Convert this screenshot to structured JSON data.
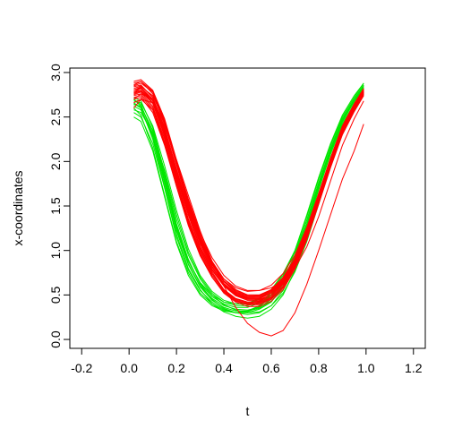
{
  "chart_data": {
    "type": "line",
    "title": "",
    "xlabel": "t",
    "ylabel": "x-coordinates",
    "xlim": [
      -0.25,
      1.25
    ],
    "ylim": [
      -0.1,
      3.05
    ],
    "xticks": [
      -0.2,
      0.0,
      0.2,
      0.4,
      0.6,
      0.8,
      1.0,
      1.2
    ],
    "xtick_labels": [
      "-0.2",
      "0.0",
      "0.2",
      "0.4",
      "0.6",
      "0.8",
      "1.0",
      "1.2"
    ],
    "yticks": [
      0.0,
      0.5,
      1.0,
      1.5,
      2.0,
      2.5,
      3.0
    ],
    "ytick_labels": [
      "0.0",
      "0.5",
      "1.0",
      "1.5",
      "2.0",
      "2.5",
      "3.0"
    ],
    "grid": false,
    "legend": "none",
    "group_colors": [
      "#00e600",
      "#ff0000"
    ],
    "x": [
      0.02,
      0.05,
      0.1,
      0.15,
      0.2,
      0.25,
      0.3,
      0.35,
      0.4,
      0.45,
      0.5,
      0.55,
      0.6,
      0.65,
      0.7,
      0.75,
      0.8,
      0.85,
      0.9,
      0.95,
      0.99
    ],
    "series": [
      {
        "color": "#00e600",
        "values": [
          2.7,
          2.62,
          2.35,
          1.85,
          1.3,
          0.9,
          0.62,
          0.45,
          0.35,
          0.3,
          0.28,
          0.3,
          0.38,
          0.55,
          0.82,
          1.2,
          1.62,
          2.02,
          2.38,
          2.62,
          2.8
        ]
      },
      {
        "color": "#00e600",
        "values": [
          2.55,
          2.5,
          2.2,
          1.7,
          1.15,
          0.78,
          0.55,
          0.42,
          0.34,
          0.3,
          0.3,
          0.34,
          0.42,
          0.6,
          0.88,
          1.25,
          1.68,
          2.08,
          2.42,
          2.65,
          2.82
        ]
      },
      {
        "color": "#00e600",
        "values": [
          2.62,
          2.58,
          2.28,
          1.78,
          1.24,
          0.85,
          0.6,
          0.46,
          0.38,
          0.34,
          0.33,
          0.36,
          0.45,
          0.62,
          0.9,
          1.28,
          1.7,
          2.1,
          2.44,
          2.68,
          2.85
        ]
      },
      {
        "color": "#00e600",
        "values": [
          2.58,
          2.55,
          2.32,
          1.9,
          1.4,
          0.98,
          0.7,
          0.52,
          0.42,
          0.38,
          0.38,
          0.42,
          0.52,
          0.68,
          0.94,
          1.3,
          1.72,
          2.12,
          2.46,
          2.7,
          2.86
        ]
      },
      {
        "color": "#00e600",
        "values": [
          2.65,
          2.6,
          2.25,
          1.72,
          1.18,
          0.8,
          0.56,
          0.4,
          0.31,
          0.26,
          0.24,
          0.26,
          0.34,
          0.5,
          0.78,
          1.15,
          1.58,
          2.0,
          2.36,
          2.6,
          2.78
        ]
      },
      {
        "color": "#00e600",
        "values": [
          2.68,
          2.66,
          2.4,
          1.95,
          1.45,
          1.02,
          0.72,
          0.54,
          0.44,
          0.4,
          0.4,
          0.45,
          0.56,
          0.74,
          1.0,
          1.38,
          1.8,
          2.18,
          2.5,
          2.72,
          2.88
        ]
      },
      {
        "color": "#00e600",
        "values": [
          2.6,
          2.52,
          2.15,
          1.62,
          1.1,
          0.75,
          0.52,
          0.4,
          0.33,
          0.3,
          0.31,
          0.37,
          0.48,
          0.66,
          0.95,
          1.34,
          1.76,
          2.14,
          2.47,
          2.68,
          2.84
        ]
      },
      {
        "color": "#00e600",
        "values": [
          2.72,
          2.68,
          2.38,
          1.88,
          1.35,
          0.95,
          0.68,
          0.5,
          0.39,
          0.33,
          0.3,
          0.31,
          0.38,
          0.52,
          0.76,
          1.1,
          1.52,
          1.95,
          2.32,
          2.58,
          2.76
        ]
      },
      {
        "color": "#00e600",
        "values": [
          2.5,
          2.45,
          2.12,
          1.6,
          1.08,
          0.72,
          0.5,
          0.38,
          0.32,
          0.3,
          0.32,
          0.38,
          0.5,
          0.7,
          1.0,
          1.4,
          1.82,
          2.2,
          2.52,
          2.74,
          2.88
        ]
      },
      {
        "color": "#00e600",
        "values": [
          2.64,
          2.62,
          2.34,
          1.82,
          1.28,
          0.88,
          0.63,
          0.48,
          0.4,
          0.36,
          0.36,
          0.41,
          0.5,
          0.66,
          0.92,
          1.3,
          1.74,
          2.12,
          2.45,
          2.67,
          2.83
        ]
      },
      {
        "color": "#00e600",
        "values": [
          2.66,
          2.6,
          2.28,
          1.76,
          1.22,
          0.84,
          0.59,
          0.44,
          0.36,
          0.32,
          0.32,
          0.35,
          0.43,
          0.58,
          0.84,
          1.2,
          1.62,
          2.04,
          2.4,
          2.64,
          2.82
        ]
      },
      {
        "color": "#00e600",
        "values": [
          2.7,
          2.64,
          2.3,
          1.8,
          1.26,
          0.88,
          0.64,
          0.5,
          0.42,
          0.4,
          0.41,
          0.46,
          0.56,
          0.72,
          0.98,
          1.34,
          1.76,
          2.15,
          2.48,
          2.7,
          2.86
        ]
      },
      {
        "color": "#ff0000",
        "values": [
          2.8,
          2.82,
          2.68,
          2.32,
          1.85,
          1.4,
          1.02,
          0.74,
          0.56,
          0.46,
          0.42,
          0.43,
          0.5,
          0.64,
          0.88,
          1.22,
          1.62,
          2.02,
          2.38,
          2.62,
          2.78
        ]
      },
      {
        "color": "#ff0000",
        "values": [
          2.85,
          2.88,
          2.78,
          2.45,
          1.98,
          1.52,
          1.12,
          0.82,
          0.62,
          0.5,
          0.45,
          0.45,
          0.5,
          0.62,
          0.84,
          1.16,
          1.56,
          1.96,
          2.34,
          2.6,
          2.76
        ]
      },
      {
        "color": "#ff0000",
        "values": [
          2.75,
          2.78,
          2.62,
          2.25,
          1.78,
          1.34,
          0.98,
          0.72,
          0.55,
          0.45,
          0.41,
          0.42,
          0.48,
          0.62,
          0.86,
          1.2,
          1.6,
          2.0,
          2.36,
          2.61,
          2.77
        ]
      },
      {
        "color": "#ff0000",
        "values": [
          2.9,
          2.92,
          2.8,
          2.48,
          2.02,
          1.56,
          1.16,
          0.86,
          0.66,
          0.55,
          0.5,
          0.5,
          0.56,
          0.68,
          0.9,
          1.24,
          1.64,
          2.04,
          2.4,
          2.65,
          2.82
        ]
      },
      {
        "color": "#ff0000",
        "values": [
          2.7,
          2.72,
          2.55,
          2.18,
          1.72,
          1.28,
          0.94,
          0.7,
          0.54,
          0.44,
          0.4,
          0.41,
          0.47,
          0.6,
          0.83,
          1.16,
          1.56,
          1.96,
          2.32,
          2.58,
          2.75
        ]
      },
      {
        "color": "#ff0000",
        "values": [
          2.82,
          2.85,
          2.72,
          2.38,
          1.92,
          1.48,
          1.1,
          0.82,
          0.63,
          0.52,
          0.47,
          0.47,
          0.53,
          0.66,
          0.88,
          1.2,
          1.6,
          2.0,
          2.36,
          2.62,
          2.8
        ]
      },
      {
        "color": "#ff0000",
        "values": [
          2.78,
          2.8,
          2.66,
          2.3,
          1.84,
          1.4,
          1.04,
          0.78,
          0.6,
          0.49,
          0.44,
          0.44,
          0.5,
          0.63,
          0.86,
          1.18,
          1.58,
          1.98,
          2.34,
          2.6,
          2.77
        ]
      },
      {
        "color": "#ff0000",
        "values": [
          2.74,
          2.76,
          2.6,
          2.22,
          1.75,
          1.32,
          0.96,
          0.7,
          0.52,
          0.42,
          0.37,
          0.37,
          0.43,
          0.56,
          0.79,
          1.12,
          1.52,
          1.93,
          2.3,
          2.56,
          2.74
        ]
      },
      {
        "color": "#ff0000",
        "values": [
          2.86,
          2.9,
          2.76,
          2.42,
          1.96,
          1.5,
          1.12,
          0.84,
          0.65,
          0.53,
          0.48,
          0.48,
          0.54,
          0.67,
          0.9,
          1.22,
          1.62,
          2.02,
          2.38,
          2.64,
          2.82
        ]
      },
      {
        "color": "#ff0000",
        "values": [
          2.76,
          2.79,
          2.65,
          2.28,
          1.8,
          1.36,
          1.0,
          0.74,
          0.56,
          0.46,
          0.42,
          0.43,
          0.5,
          0.64,
          0.88,
          1.22,
          1.62,
          2.02,
          2.38,
          2.63,
          2.8
        ]
      },
      {
        "color": "#ff0000",
        "values": [
          2.8,
          2.84,
          2.74,
          2.44,
          2.0,
          1.56,
          1.18,
          0.88,
          0.68,
          0.56,
          0.5,
          0.5,
          0.55,
          0.67,
          0.88,
          1.18,
          1.56,
          1.96,
          2.34,
          2.6,
          2.78
        ]
      },
      {
        "color": "#ff0000",
        "values": [
          2.72,
          2.74,
          2.58,
          2.2,
          1.72,
          1.3,
          0.95,
          0.7,
          0.53,
          0.43,
          0.39,
          0.4,
          0.46,
          0.59,
          0.82,
          1.15,
          1.55,
          1.95,
          2.32,
          2.58,
          2.76
        ]
      },
      {
        "color": "#ff0000",
        "values": [
          2.88,
          2.9,
          2.79,
          2.46,
          2.0,
          1.54,
          1.14,
          0.85,
          0.65,
          0.54,
          0.49,
          0.49,
          0.55,
          0.68,
          0.9,
          1.23,
          1.63,
          2.03,
          2.39,
          2.64,
          2.81
        ]
      },
      {
        "color": "#ff0000",
        "values": [
          2.8,
          2.83,
          2.7,
          2.35,
          1.88,
          1.44,
          1.07,
          0.79,
          0.61,
          0.5,
          0.46,
          0.46,
          0.52,
          0.65,
          0.87,
          1.19,
          1.59,
          1.99,
          2.35,
          2.61,
          2.79
        ]
      },
      {
        "color": "#ff0000",
        "values": [
          2.77,
          2.8,
          2.68,
          2.34,
          1.9,
          1.48,
          1.12,
          0.86,
          0.68,
          0.58,
          0.54,
          0.55,
          0.61,
          0.74,
          0.95,
          1.26,
          1.64,
          2.02,
          2.37,
          2.62,
          2.8
        ]
      },
      {
        "color": "#ff0000",
        "values": [
          2.84,
          2.86,
          2.72,
          2.36,
          1.88,
          1.42,
          1.04,
          0.76,
          0.56,
          0.44,
          0.39,
          0.39,
          0.45,
          0.58,
          0.81,
          1.14,
          1.54,
          1.95,
          2.32,
          2.59,
          2.78
        ]
      },
      {
        "color": "#ff0000",
        "values": [
          2.66,
          2.7,
          2.58,
          2.26,
          1.82,
          1.4,
          1.04,
          0.78,
          0.6,
          0.5,
          0.47,
          0.49,
          0.56,
          0.7,
          0.92,
          1.24,
          1.62,
          2.0,
          2.35,
          2.6,
          2.77
        ]
      },
      {
        "color": "#ff0000",
        "values": [
          2.6,
          2.7,
          2.66,
          2.4,
          2.02,
          1.62,
          1.22,
          0.88,
          0.6,
          0.36,
          0.18,
          0.08,
          0.04,
          0.1,
          0.3,
          0.62,
          1.0,
          1.4,
          1.8,
          2.12,
          2.42
        ]
      },
      {
        "color": "#ff0000",
        "values": [
          2.7,
          2.76,
          2.7,
          2.42,
          2.0,
          1.58,
          1.2,
          0.92,
          0.72,
          0.6,
          0.55,
          0.55,
          0.58,
          0.66,
          0.8,
          1.04,
          1.38,
          1.78,
          2.18,
          2.48,
          2.68
        ]
      },
      {
        "color": "#ff0000",
        "values": [
          2.78,
          2.82,
          2.7,
          2.36,
          1.9,
          1.46,
          1.09,
          0.81,
          0.62,
          0.51,
          0.46,
          0.46,
          0.52,
          0.65,
          0.87,
          1.19,
          1.59,
          1.99,
          2.35,
          2.61,
          2.79
        ]
      }
    ]
  }
}
